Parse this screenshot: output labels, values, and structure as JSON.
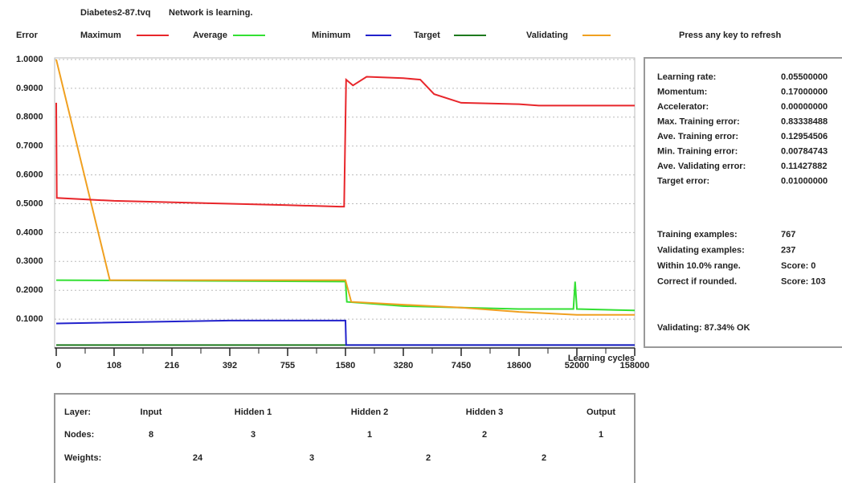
{
  "header": {
    "file": "Diabetes2-87.tvq",
    "status": "Network is learning."
  },
  "hint": "Press any key to refresh",
  "chart_data": {
    "type": "line",
    "y_label": "Error",
    "x_label": "Learning cycles",
    "xlim": [
      0,
      158000
    ],
    "xticks": [
      0,
      108,
      216,
      392,
      755,
      1580,
      3280,
      7450,
      18600,
      52000,
      158000
    ],
    "ylim": [
      0,
      1
    ],
    "yticks": [
      {
        "value": 0.1,
        "label": "0.1000"
      },
      {
        "value": 0.2,
        "label": "0.2000"
      },
      {
        "value": 0.3,
        "label": "0.3000"
      },
      {
        "value": 0.4,
        "label": "0.4000"
      },
      {
        "value": 0.5,
        "label": "0.5000"
      },
      {
        "value": 0.6,
        "label": "0.6000"
      },
      {
        "value": 0.7,
        "label": "0.7000"
      },
      {
        "value": 0.8,
        "label": "0.8000"
      },
      {
        "value": 0.9,
        "label": "0.9000"
      },
      {
        "value": 1,
        "label": "1.0000"
      }
    ],
    "grid": true,
    "series": [
      {
        "name": "Maximum",
        "color": "#e8262b",
        "x": [
          0,
          1,
          108,
          392,
          755,
          1500,
          1560,
          1600,
          1800,
          2200,
          3280,
          4500,
          5500,
          7450,
          18600,
          30000,
          52000,
          158000
        ],
        "values": [
          0.85,
          0.52,
          0.51,
          0.5,
          0.495,
          0.49,
          0.49,
          0.93,
          0.91,
          0.94,
          0.935,
          0.93,
          0.88,
          0.85,
          0.845,
          0.84,
          0.84,
          0.84
        ]
      },
      {
        "name": "Average",
        "color": "#33e033",
        "x": [
          0,
          1580,
          1620,
          3280,
          7450,
          18600,
          50000,
          51000,
          52000,
          158000
        ],
        "values": [
          0.235,
          0.23,
          0.16,
          0.145,
          0.14,
          0.135,
          0.135,
          0.23,
          0.135,
          0.13
        ]
      },
      {
        "name": "Minimum",
        "color": "#2222cc",
        "x": [
          0,
          392,
          1580,
          1600,
          158000
        ],
        "values": [
          0.085,
          0.095,
          0.095,
          0.01,
          0.01
        ]
      },
      {
        "name": "Target",
        "color": "#1e7a1e",
        "x": [
          0,
          158000
        ],
        "values": [
          0.01,
          0.01
        ]
      },
      {
        "name": "Validating",
        "color": "#f0a020",
        "x": [
          0,
          100,
          1580,
          1750,
          3280,
          7450,
          18600,
          52000,
          158000
        ],
        "values": [
          1,
          0.235,
          0.235,
          0.16,
          0.15,
          0.14,
          0.125,
          0.115,
          0.115
        ]
      }
    ]
  },
  "parameters": [
    {
      "label": "Learning rate:",
      "value": "0.05500000"
    },
    {
      "label": "Momentum:",
      "value": "0.17000000"
    },
    {
      "label": "Accelerator:",
      "value": "0.00000000"
    },
    {
      "label": "Max. Training error:",
      "value": "0.83338488"
    },
    {
      "label": "Ave. Training error:",
      "value": "0.12954506"
    },
    {
      "label": "Min. Training error:",
      "value": "0.00784743"
    },
    {
      "label": "Ave. Validating error:",
      "value": "0.11427882"
    },
    {
      "label": "Target error:",
      "value": "0.01000000"
    }
  ],
  "counts": [
    {
      "label": "Training examples:",
      "value": 767
    },
    {
      "label": "Validating examples:",
      "value": 237
    },
    {
      "label": "Within 10.0% range.",
      "value": "Score: 0"
    },
    {
      "label": "Correct if rounded.",
      "value": "Score: 103"
    }
  ],
  "summary": "Validating: 87.34% OK",
  "network": {
    "layer_label": "Layer:",
    "layers": [
      "Input",
      "Hidden 1",
      "Hidden 2",
      "Hidden 3",
      "Output"
    ],
    "nodes_label": "Nodes:",
    "nodes": [
      8,
      3,
      1,
      2,
      1
    ],
    "weights_label": "Weights:",
    "weights": [
      24,
      3,
      2,
      2
    ]
  }
}
